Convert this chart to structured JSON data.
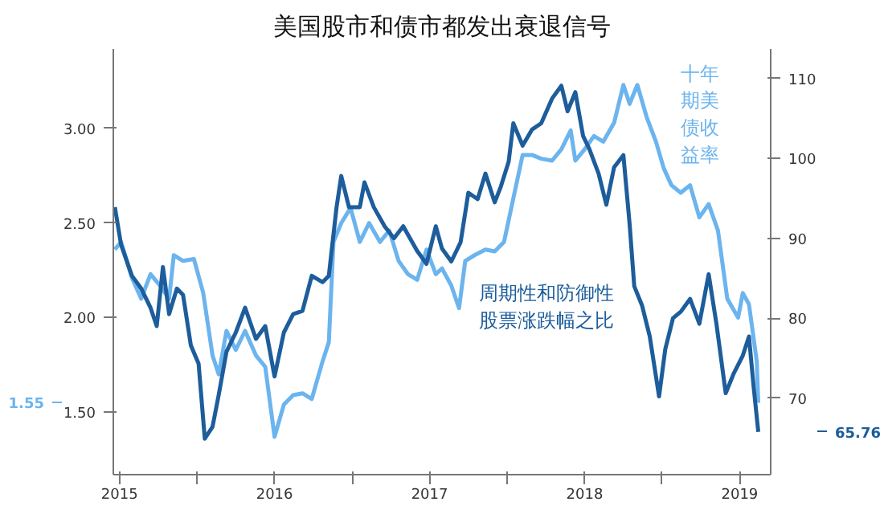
{
  "chart_data": {
    "type": "line",
    "title": "美国股市和债市都发出衰退信号",
    "xlim": [
      2015.46,
      2019.7
    ],
    "xticks": [
      {
        "value": 2016,
        "label": null
      },
      {
        "value": 2017,
        "label": null
      },
      {
        "value": 2018,
        "label": null
      },
      {
        "value": 2019,
        "label": null
      },
      {
        "value": 2015.5,
        "label": "2015"
      },
      {
        "value": 2016.5,
        "label": "2016"
      },
      {
        "value": 2017.5,
        "label": "2017"
      },
      {
        "value": 2018.5,
        "label": "2018"
      },
      {
        "value": 2019.5,
        "label": "2019"
      }
    ],
    "ylim": [
      1.17,
      3.42
    ],
    "yticks": [
      {
        "value": 1.5,
        "label": "1.50"
      },
      {
        "value": 2.0,
        "label": "2.00"
      },
      {
        "value": 2.5,
        "label": "2.50"
      },
      {
        "value": 3.0,
        "label": "3.00"
      }
    ],
    "y2lim": [
      60.4,
      113.7
    ],
    "y2ticks": [
      70,
      80,
      90,
      100,
      110
    ],
    "grid": false,
    "legend": false,
    "series": [
      {
        "name": "十年期美债收益率",
        "color": "#6cb4ee",
        "x": [
          2015.47,
          2015.51,
          2015.58,
          2015.64,
          2015.7,
          2015.76,
          2015.82,
          2015.85,
          2015.91,
          2015.98,
          2016.04,
          2016.1,
          2016.14,
          2016.19,
          2016.25,
          2016.31,
          2016.38,
          2016.44,
          2016.5,
          2016.56,
          2016.62,
          2016.68,
          2016.74,
          2016.81,
          2016.85,
          2016.88,
          2016.93,
          2016.99,
          2017.05,
          2017.11,
          2017.18,
          2017.24,
          2017.3,
          2017.36,
          2017.42,
          2017.48,
          2017.54,
          2017.58,
          2017.64,
          2017.69,
          2017.73,
          2017.79,
          2017.86,
          2017.92,
          2017.98,
          2018.04,
          2018.1,
          2018.16,
          2018.22,
          2018.29,
          2018.35,
          2018.41,
          2018.44,
          2018.5,
          2018.56,
          2018.62,
          2018.69,
          2018.75,
          2018.79,
          2018.84,
          2018.9,
          2018.96,
          2019.01,
          2019.06,
          2019.12,
          2019.18,
          2019.24,
          2019.3,
          2019.36,
          2019.42,
          2019.49,
          2019.52,
          2019.56,
          2019.61,
          2019.62
        ],
        "values": [
          2.36,
          2.4,
          2.21,
          2.1,
          2.23,
          2.17,
          2.1,
          2.33,
          2.3,
          2.31,
          2.13,
          1.8,
          1.7,
          1.93,
          1.83,
          1.93,
          1.8,
          1.74,
          1.37,
          1.54,
          1.59,
          1.6,
          1.57,
          1.77,
          1.87,
          2.4,
          2.5,
          2.58,
          2.4,
          2.5,
          2.4,
          2.46,
          2.3,
          2.23,
          2.2,
          2.36,
          2.23,
          2.26,
          2.17,
          2.05,
          2.3,
          2.33,
          2.36,
          2.35,
          2.4,
          2.63,
          2.86,
          2.86,
          2.84,
          2.83,
          2.89,
          2.99,
          2.83,
          2.89,
          2.96,
          2.93,
          3.03,
          3.23,
          3.13,
          3.23,
          3.06,
          2.93,
          2.79,
          2.7,
          2.66,
          2.7,
          2.53,
          2.6,
          2.46,
          2.1,
          2.0,
          2.13,
          2.07,
          1.77,
          1.55
        ]
      },
      {
        "name": "周期性和防御性股票涨跌幅之比",
        "color": "#1d5d9b",
        "axis": "y2",
        "x": [
          2015.47,
          2015.51,
          2015.58,
          2015.64,
          2015.7,
          2015.74,
          2015.78,
          2015.82,
          2015.87,
          2015.91,
          2015.96,
          2016.01,
          2016.05,
          2016.1,
          2016.14,
          2016.19,
          2016.25,
          2016.31,
          2016.38,
          2016.44,
          2016.5,
          2016.56,
          2016.62,
          2016.68,
          2016.74,
          2016.81,
          2016.85,
          2016.9,
          2016.93,
          2016.98,
          2017.05,
          2017.08,
          2017.14,
          2017.21,
          2017.27,
          2017.33,
          2017.42,
          2017.48,
          2017.54,
          2017.58,
          2017.64,
          2017.7,
          2017.75,
          2017.81,
          2017.86,
          2017.92,
          2017.96,
          2018.01,
          2018.04,
          2018.1,
          2018.16,
          2018.22,
          2018.29,
          2018.35,
          2018.39,
          2018.44,
          2018.49,
          2018.53,
          2018.59,
          2018.64,
          2018.69,
          2018.75,
          2018.79,
          2018.82,
          2018.87,
          2018.92,
          2018.98,
          2019.02,
          2019.07,
          2019.12,
          2019.18,
          2019.24,
          2019.3,
          2019.35,
          2019.41,
          2019.46,
          2019.52,
          2019.56,
          2019.59,
          2019.62
        ],
        "values": [
          93.9,
          89.2,
          85.3,
          83.7,
          81.3,
          79.0,
          86.4,
          80.5,
          83.7,
          82.9,
          76.6,
          74.3,
          64.9,
          66.4,
          70.4,
          75.8,
          78.2,
          81.3,
          77.4,
          79.0,
          72.7,
          78.2,
          80.5,
          80.9,
          85.3,
          84.5,
          85.3,
          93.9,
          97.8,
          93.9,
          93.9,
          97.0,
          93.9,
          91.5,
          90.0,
          91.5,
          88.4,
          86.8,
          91.5,
          88.7,
          87.1,
          89.5,
          95.7,
          94.9,
          98.1,
          94.5,
          96.5,
          99.6,
          104.4,
          101.6,
          103.6,
          104.4,
          107.5,
          109.1,
          105.9,
          108.3,
          102.8,
          101.2,
          98.1,
          94.2,
          98.9,
          100.4,
          91.8,
          84.0,
          81.6,
          77.7,
          70.2,
          76.1,
          80.0,
          80.8,
          82.4,
          79.3,
          85.5,
          79.3,
          70.6,
          73.0,
          75.3,
          77.7,
          71.4,
          65.76
        ]
      }
    ],
    "annotations": [
      "1.55",
      "65.76"
    ]
  }
}
